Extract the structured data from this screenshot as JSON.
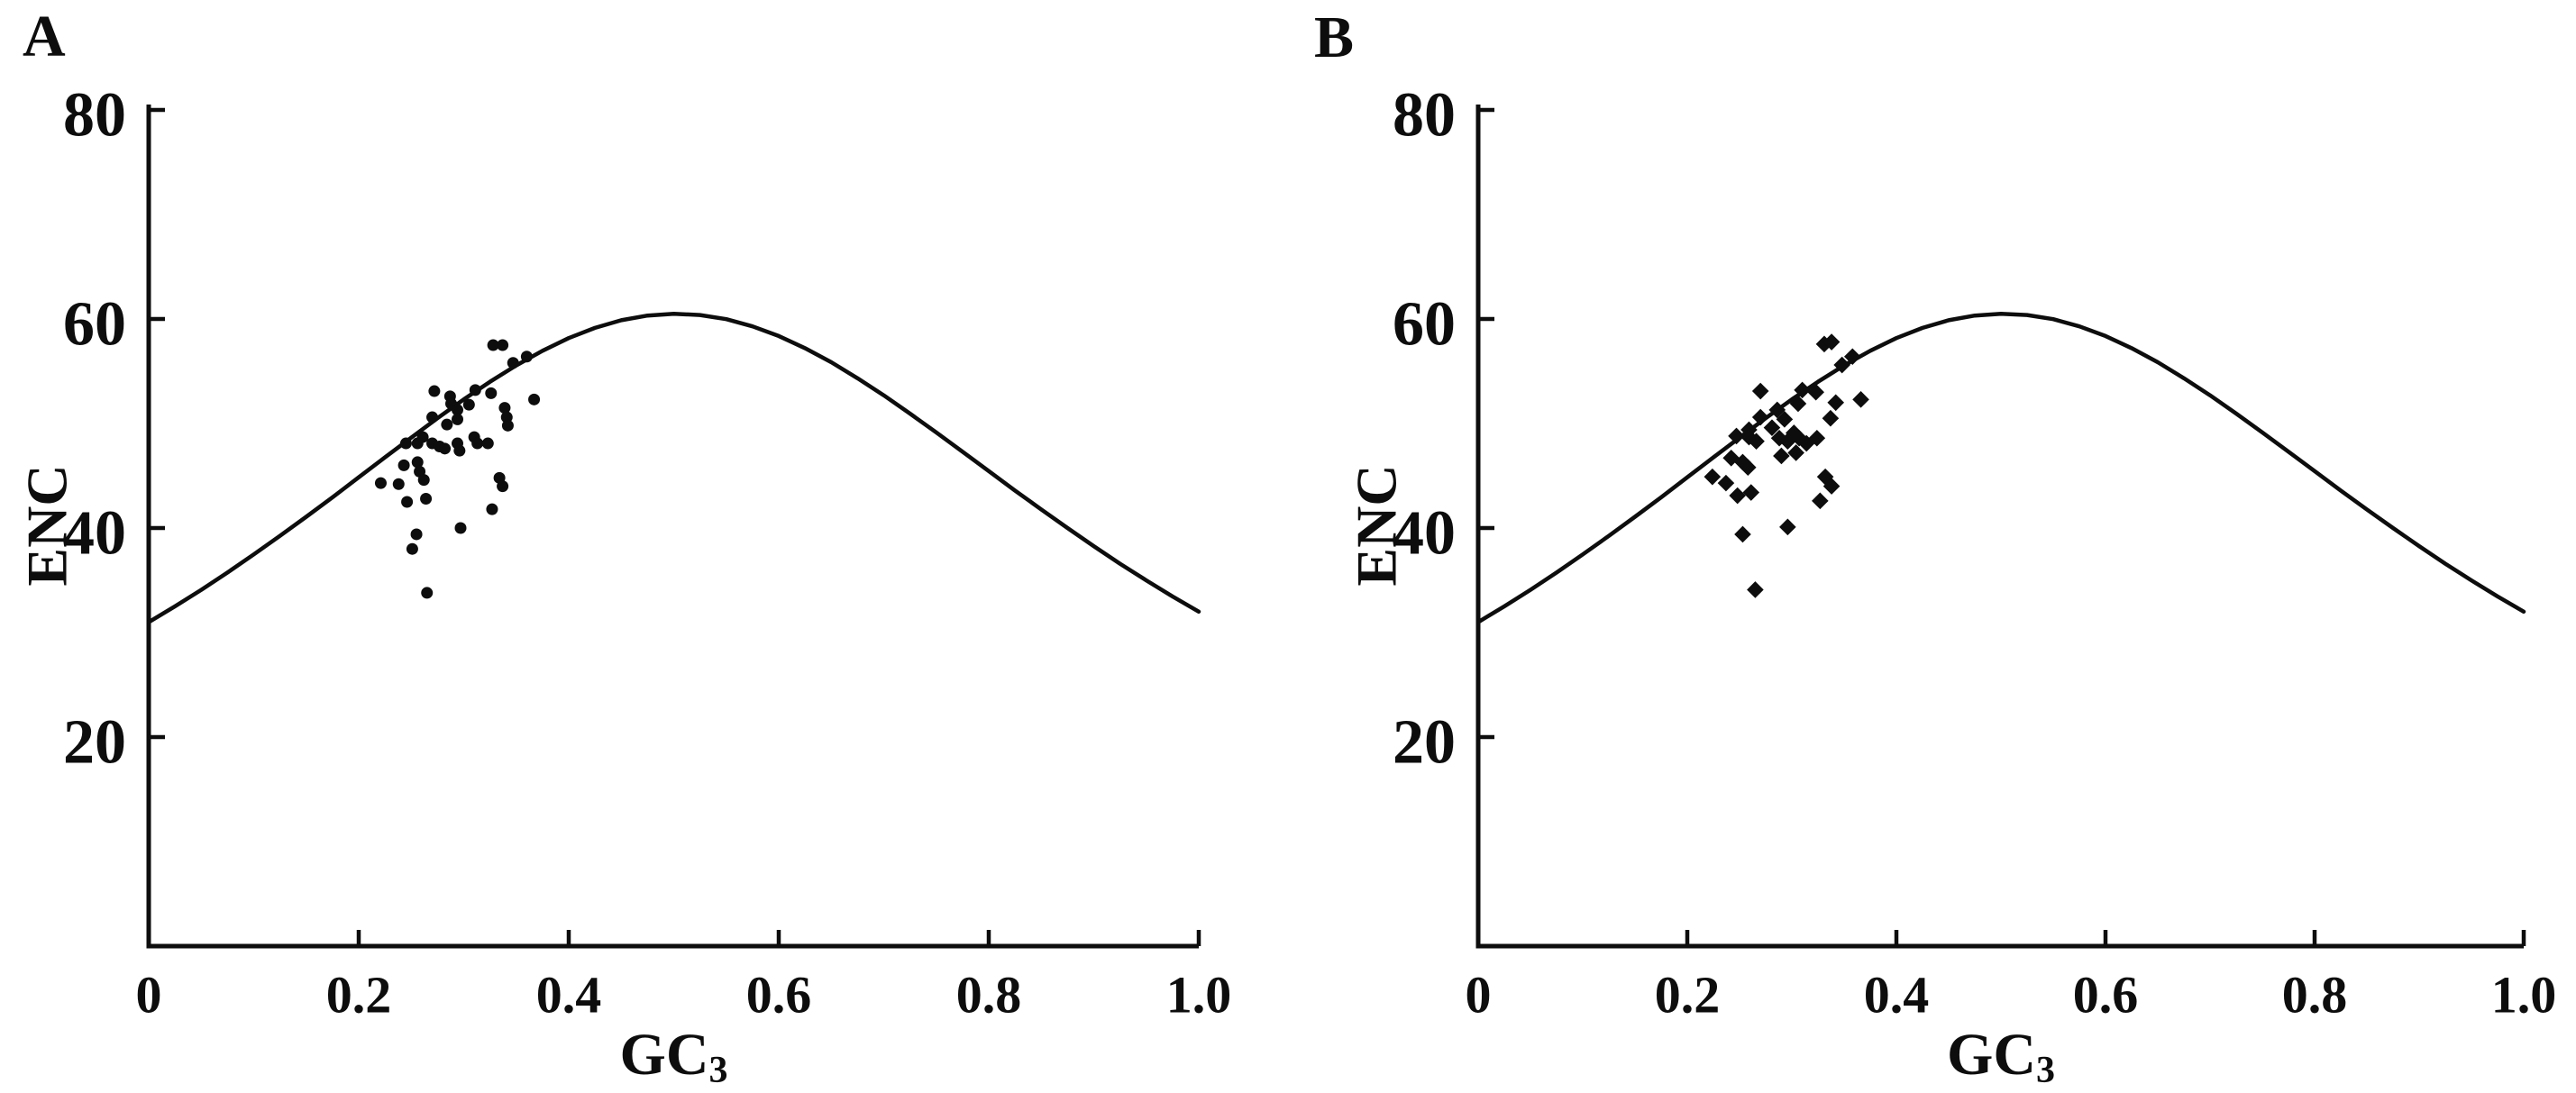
{
  "figure": {
    "description": "Two-panel ENC versus GC3 scatter plot with Wright's expected ENC curve",
    "background_color": "#ffffff",
    "ink_color": "#0d0d0d",
    "expected_curve": {
      "name": "Wright expected ENC curve",
      "formula": "ENC = 2 + GC3 + 29 / (GC3^2 + (1 - GC3)^2)",
      "samples": [
        [
          0.0,
          31.0
        ],
        [
          0.025,
          32.51
        ],
        [
          0.05,
          34.09
        ],
        [
          0.075,
          35.74
        ],
        [
          0.1,
          37.47
        ],
        [
          0.125,
          39.25
        ],
        [
          0.15,
          41.08
        ],
        [
          0.175,
          42.94
        ],
        [
          0.2,
          44.85
        ],
        [
          0.225,
          46.76
        ],
        [
          0.25,
          48.65
        ],
        [
          0.275,
          50.51
        ],
        [
          0.3,
          52.3
        ],
        [
          0.325,
          53.99
        ],
        [
          0.35,
          55.56
        ],
        [
          0.375,
          56.96
        ],
        [
          0.4,
          58.17
        ],
        [
          0.425,
          59.15
        ],
        [
          0.45,
          59.88
        ],
        [
          0.475,
          60.33
        ],
        [
          0.5,
          60.5
        ],
        [
          0.525,
          60.38
        ],
        [
          0.55,
          59.98
        ],
        [
          0.575,
          59.29
        ],
        [
          0.6,
          58.37
        ],
        [
          0.625,
          57.21
        ],
        [
          0.65,
          55.86
        ],
        [
          0.675,
          54.33
        ],
        [
          0.7,
          52.7
        ],
        [
          0.725,
          50.95
        ],
        [
          0.75,
          49.15
        ],
        [
          0.775,
          47.3
        ],
        [
          0.8,
          45.45
        ],
        [
          0.825,
          43.59
        ],
        [
          0.85,
          41.78
        ],
        [
          0.875,
          40.0
        ],
        [
          0.9,
          38.27
        ],
        [
          0.925,
          36.59
        ],
        [
          0.95,
          34.99
        ],
        [
          0.975,
          33.46
        ],
        [
          1.0,
          32.0
        ]
      ]
    }
  },
  "chart_data": [
    {
      "type": "scatter",
      "panel_label": "A",
      "marker": "circle",
      "xlabel": "GC",
      "xlabel_subscript": "3",
      "ylabel": "ENC",
      "xlim": [
        0,
        1
      ],
      "ylim": [
        0,
        80
      ],
      "x_ticks": [
        {
          "value": 0,
          "label": "0"
        },
        {
          "value": 0.2,
          "label": "0.2"
        },
        {
          "value": 0.4,
          "label": "0.4"
        },
        {
          "value": 0.6,
          "label": "0.6"
        },
        {
          "value": 0.8,
          "label": "0.8"
        },
        {
          "value": 1.0,
          "label": "1.0"
        }
      ],
      "y_ticks": [
        {
          "value": 20,
          "label": "20"
        },
        {
          "value": 40,
          "label": "40"
        },
        {
          "value": 60,
          "label": "60"
        },
        {
          "value": 80,
          "label": "80"
        }
      ],
      "grid": false,
      "legend": "none",
      "points": [
        [
          0.328,
          57.5
        ],
        [
          0.337,
          57.5
        ],
        [
          0.347,
          55.8
        ],
        [
          0.36,
          56.4
        ],
        [
          0.272,
          53.1
        ],
        [
          0.287,
          52.6
        ],
        [
          0.311,
          53.2
        ],
        [
          0.326,
          52.9
        ],
        [
          0.367,
          52.3
        ],
        [
          0.288,
          51.9
        ],
        [
          0.294,
          51.3
        ],
        [
          0.305,
          51.8
        ],
        [
          0.27,
          50.6
        ],
        [
          0.284,
          49.9
        ],
        [
          0.294,
          50.4
        ],
        [
          0.339,
          51.5
        ],
        [
          0.341,
          50.6
        ],
        [
          0.342,
          49.8
        ],
        [
          0.245,
          48.1
        ],
        [
          0.256,
          48.1
        ],
        [
          0.261,
          48.7
        ],
        [
          0.27,
          48.1
        ],
        [
          0.277,
          47.8
        ],
        [
          0.282,
          47.6
        ],
        [
          0.294,
          48.1
        ],
        [
          0.296,
          47.4
        ],
        [
          0.31,
          48.7
        ],
        [
          0.313,
          48.1
        ],
        [
          0.323,
          48.1
        ],
        [
          0.243,
          46.0
        ],
        [
          0.256,
          46.3
        ],
        [
          0.258,
          45.4
        ],
        [
          0.262,
          44.6
        ],
        [
          0.238,
          44.2
        ],
        [
          0.221,
          44.3
        ],
        [
          0.246,
          42.5
        ],
        [
          0.264,
          42.8
        ],
        [
          0.334,
          44.8
        ],
        [
          0.337,
          44.0
        ],
        [
          0.327,
          41.8
        ],
        [
          0.297,
          40.0
        ],
        [
          0.255,
          39.4
        ],
        [
          0.251,
          38.0
        ],
        [
          0.265,
          33.8
        ]
      ]
    },
    {
      "type": "scatter",
      "panel_label": "B",
      "marker": "diamond",
      "xlabel": "GC",
      "xlabel_subscript": "3",
      "ylabel": "ENC",
      "xlim": [
        0,
        1
      ],
      "ylim": [
        0,
        80
      ],
      "x_ticks": [
        {
          "value": 0,
          "label": "0"
        },
        {
          "value": 0.2,
          "label": "0.2"
        },
        {
          "value": 0.4,
          "label": "0.4"
        },
        {
          "value": 0.6,
          "label": "0.6"
        },
        {
          "value": 0.8,
          "label": "0.8"
        },
        {
          "value": 1.0,
          "label": "1.0"
        }
      ],
      "y_ticks": [
        {
          "value": 20,
          "label": "20"
        },
        {
          "value": 40,
          "label": "40"
        },
        {
          "value": 60,
          "label": "60"
        },
        {
          "value": 80,
          "label": "80"
        }
      ],
      "grid": false,
      "legend": "none",
      "points": [
        [
          0.331,
          57.6
        ],
        [
          0.338,
          57.8
        ],
        [
          0.348,
          55.6
        ],
        [
          0.358,
          56.4
        ],
        [
          0.27,
          53.1
        ],
        [
          0.31,
          53.2
        ],
        [
          0.323,
          53.0
        ],
        [
          0.366,
          52.3
        ],
        [
          0.286,
          51.3
        ],
        [
          0.306,
          51.9
        ],
        [
          0.342,
          52.0
        ],
        [
          0.293,
          50.4
        ],
        [
          0.27,
          50.6
        ],
        [
          0.281,
          49.6
        ],
        [
          0.337,
          50.5
        ],
        [
          0.259,
          49.4
        ],
        [
          0.247,
          48.8
        ],
        [
          0.259,
          48.7
        ],
        [
          0.266,
          48.3
        ],
        [
          0.288,
          48.6
        ],
        [
          0.296,
          48.3
        ],
        [
          0.302,
          49.1
        ],
        [
          0.307,
          48.6
        ],
        [
          0.314,
          48.1
        ],
        [
          0.324,
          48.6
        ],
        [
          0.304,
          47.2
        ],
        [
          0.29,
          46.9
        ],
        [
          0.242,
          46.7
        ],
        [
          0.253,
          46.3
        ],
        [
          0.258,
          45.8
        ],
        [
          0.224,
          44.9
        ],
        [
          0.237,
          44.3
        ],
        [
          0.248,
          43.1
        ],
        [
          0.261,
          43.4
        ],
        [
          0.332,
          44.9
        ],
        [
          0.338,
          44.0
        ],
        [
          0.327,
          42.6
        ],
        [
          0.296,
          40.1
        ],
        [
          0.253,
          39.4
        ],
        [
          0.265,
          34.1
        ]
      ]
    }
  ]
}
